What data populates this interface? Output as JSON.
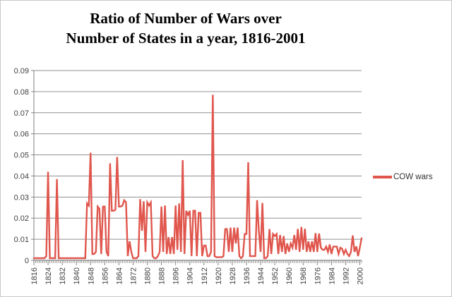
{
  "title": {
    "line1": "Ratio of Number of Wars over",
    "line2": "Number of States in a year, 1816-2001"
  },
  "legend": {
    "label": "COW wars",
    "position": "right"
  },
  "axes": {
    "y_tick_labels": [
      "0.09",
      "0.08",
      "0.07",
      "0.06",
      "0.05",
      "0.04",
      "0.03",
      "0.02",
      "0.01",
      "0"
    ],
    "x_tick_labels": [
      1816,
      1824,
      1832,
      1840,
      1848,
      1856,
      1864,
      1872,
      1880,
      1888,
      1896,
      1904,
      1912,
      1920,
      1928,
      1936,
      1944,
      1952,
      1960,
      1968,
      1976,
      1984,
      1992,
      2000
    ]
  },
  "colors": {
    "series_red": "#E0564D",
    "gridline": "#909090",
    "axis": "#808080",
    "tick_label": "#3f3f3f"
  },
  "chart_data": {
    "type": "line",
    "title": "Ratio of Number of Wars over Number of States in a year, 1816-2001",
    "series_name": "COW wars",
    "xlabel": "",
    "ylabel": "",
    "ylim": [
      0,
      0.09
    ],
    "y_tick_step": 0.01,
    "grid": true,
    "legend_position": "right",
    "start_year": 1816,
    "end_year": 2001,
    "values": [
      0.001,
      0.001,
      0.001,
      0.001,
      0.001,
      0.001,
      0.001,
      0.002,
      0.042,
      0.001,
      0.001,
      0.001,
      0.001,
      0.0385,
      0.001,
      0.001,
      0.001,
      0.001,
      0.001,
      0.001,
      0.001,
      0.001,
      0.001,
      0.001,
      0.001,
      0.001,
      0.001,
      0.001,
      0.001,
      0.001,
      0.027,
      0.026,
      0.051,
      0.003,
      0.003,
      0.004,
      0.0255,
      0.0245,
      0.003,
      0.0255,
      0.0255,
      0.004,
      0.002,
      0.046,
      0.0235,
      0.0235,
      0.024,
      0.049,
      0.0255,
      0.0255,
      0.026,
      0.0285,
      0.0275,
      0.002,
      0.009,
      0.004,
      0.001,
      0.001,
      0.001,
      0.002,
      0.029,
      0.014,
      0.028,
      0.004,
      0.0275,
      0.026,
      0.0275,
      0.002,
      0.001,
      0.001,
      0.002,
      0.004,
      0.0255,
      0.004,
      0.026,
      0.003,
      0.011,
      0.003,
      0.011,
      0.003,
      0.026,
      0.005,
      0.027,
      0.004,
      0.0475,
      0.003,
      0.0235,
      0.0215,
      0.0235,
      0.002,
      0.0235,
      0.0235,
      0.002,
      0.0225,
      0.0225,
      0.002,
      0.007,
      0.007,
      0.002,
      0.002,
      0.004,
      0.0785,
      0.002,
      0.0015,
      0.0015,
      0.0015,
      0.0015,
      0.002,
      0.0148,
      0.0148,
      0.004,
      0.0155,
      0.004,
      0.0155,
      0.008,
      0.0155,
      0.002,
      0.001,
      0.002,
      0.0125,
      0.0125,
      0.0465,
      0.002,
      0.002,
      0.002,
      0.002,
      0.0285,
      0.0138,
      0.004,
      0.0272,
      0.001,
      0.001,
      0.002,
      0.0148,
      0.003,
      0.0125,
      0.0115,
      0.0125,
      0.003,
      0.012,
      0.004,
      0.0115,
      0.003,
      0.008,
      0.004,
      0.008,
      0.006,
      0.012,
      0.005,
      0.0149,
      0.004,
      0.0158,
      0.005,
      0.015,
      0.004,
      0.009,
      0.004,
      0.009,
      0.004,
      0.0129,
      0.004,
      0.0127,
      0.006,
      0.005,
      0.005,
      0.0065,
      0.004,
      0.0075,
      0.003,
      0.0065,
      0.0065,
      0.0065,
      0.003,
      0.006,
      0.0055,
      0.003,
      0.005,
      0.003,
      0.002,
      0.004,
      0.0118,
      0.004,
      0.0066,
      0.002,
      0.006,
      0.0105
    ]
  }
}
